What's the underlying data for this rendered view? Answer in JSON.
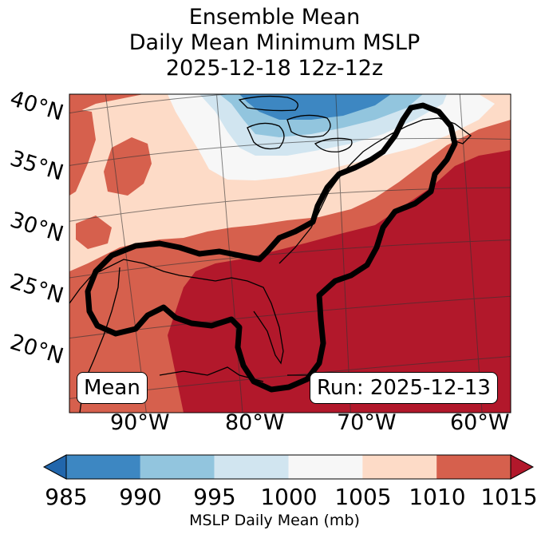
{
  "title": {
    "line1": "Ensemble Mean",
    "line2": "Daily Mean Minimum MSLP",
    "line3": "2025-12-18 12z-12z"
  },
  "map": {
    "lat_labels": [
      "40°N",
      "35°N",
      "30°N",
      "25°N",
      "20°N"
    ],
    "lon_labels": [
      "90°W",
      "80°W",
      "70°W",
      "60°W"
    ],
    "box_left": "Mean",
    "box_right": "Run: 2025-12-13"
  },
  "colorbar": {
    "ticks": [
      "985",
      "990",
      "995",
      "1000",
      "1005",
      "1010",
      "1015"
    ],
    "label": "MSLP Daily Mean (mb)",
    "colors": [
      "#2166ac",
      "#3d87c2",
      "#92c5de",
      "#d1e5f0",
      "#f7f7f7",
      "#fddbc7",
      "#d6604d",
      "#b2182b"
    ]
  }
}
